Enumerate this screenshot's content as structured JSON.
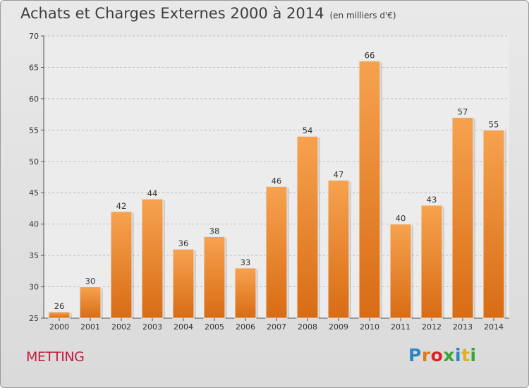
{
  "title": "Achats et Charges Externes 2000 à 2014",
  "unit_note": "(en milliers d'€)",
  "commune": "METTING",
  "logo": {
    "letters": [
      "P",
      "r",
      "o",
      "x",
      "i",
      "t",
      "i"
    ],
    "colors": [
      "#2e86c1",
      "#e07b1a",
      "#e02020",
      "#3aa635",
      "#2e86c1",
      "#e0b020",
      "#3aa635"
    ]
  },
  "colors": {
    "bar_top": "#f7a24f",
    "bar_bottom": "#d86c14",
    "grid": "#bdbdbd"
  },
  "chart_data": {
    "type": "bar",
    "categories": [
      "2000",
      "2001",
      "2002",
      "2003",
      "2004",
      "2005",
      "2006",
      "2007",
      "2008",
      "2009",
      "2010",
      "2011",
      "2012",
      "2013",
      "2014"
    ],
    "values": [
      26,
      30,
      42,
      44,
      36,
      38,
      33,
      46,
      54,
      47,
      66,
      40,
      43,
      57,
      55
    ],
    "title": "Achats et Charges Externes 2000 à 2014",
    "ylim": [
      25,
      70
    ],
    "yticks": [
      25,
      30,
      35,
      40,
      45,
      50,
      55,
      60,
      65,
      70
    ],
    "grid": true
  }
}
